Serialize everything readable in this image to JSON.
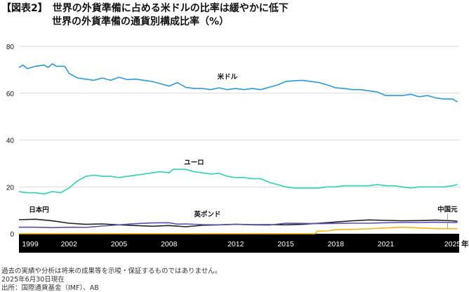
{
  "title": "【図表2】　世界の外貨準備に占める米ドルの比率は緩やかに低下",
  "subtitle": "世界の外貨準備の通貨別構成比率（%）",
  "footnotes": [
    "過去の実績や分析は将来の成果等を示唆・保証するものではありません。",
    "2025年6月30日現在",
    "出所：国際通貨基金（IMF）、AB"
  ],
  "chart_data": {
    "type": "line",
    "title": "世界の外貨準備の通貨別構成比率（%）",
    "xlabel": "年",
    "ylabel": "%",
    "ylim": [
      0,
      80
    ],
    "xlim": [
      1999,
      2025.4
    ],
    "yticks": [
      0,
      20,
      40,
      60,
      80
    ],
    "xticks": [
      {
        "label": "1999",
        "x": 1999
      },
      {
        "label": "2002",
        "x": 2002
      },
      {
        "label": "2005",
        "x": 2005
      },
      {
        "label": "2008",
        "x": 2008
      },
      {
        "label": "2012",
        "x": 2012
      },
      {
        "label": "2015",
        "x": 2015
      },
      {
        "label": "2018",
        "x": 2018
      },
      {
        "label": "2021",
        "x": 2021
      },
      {
        "label": "2025",
        "x": 2025
      }
    ],
    "grid": true,
    "series": [
      {
        "name": "米ドル",
        "color": "#2b9ad6",
        "label_at": [
          2011.5,
          66
        ],
        "x": [
          1999,
          1999.25,
          1999.5,
          2000,
          2000.5,
          2000.75,
          2001,
          2001.25,
          2001.75,
          2002,
          2002.5,
          2003,
          2003.5,
          2004,
          2004.5,
          2005,
          2005.5,
          2006,
          2006.5,
          2007,
          2007.5,
          2008,
          2008.5,
          2009,
          2009.5,
          2010,
          2010.5,
          2011,
          2011.5,
          2012,
          2012.5,
          2013,
          2013.5,
          2014,
          2014.5,
          2015,
          2015.5,
          2016,
          2016.5,
          2017,
          2017.5,
          2018,
          2018.5,
          2019,
          2019.5,
          2020,
          2020.5,
          2021,
          2021.5,
          2022,
          2022.5,
          2023,
          2023.5,
          2024,
          2024.5,
          2025,
          2025.3
        ],
        "values": [
          71,
          72,
          70.5,
          71.5,
          72,
          71,
          72.5,
          71.5,
          71.5,
          68.5,
          66.5,
          66,
          65.5,
          66.5,
          65.5,
          66.8,
          65.8,
          66,
          65.5,
          65,
          64,
          63,
          64.5,
          62.5,
          62,
          62,
          61.5,
          62.3,
          61.5,
          62,
          61.5,
          62,
          61.5,
          62.5,
          63.5,
          65,
          65.3,
          65.5,
          65,
          64.5,
          63.5,
          62.3,
          62,
          61.5,
          61.5,
          61,
          60.5,
          59,
          59,
          59,
          59.5,
          58.5,
          59,
          58,
          57.5,
          57.5,
          56.3
        ]
      },
      {
        "name": "ユーロ",
        "color": "#2fd3b4",
        "label_at": [
          2009.5,
          29.5
        ],
        "x": [
          1999,
          1999.5,
          2000,
          2000.5,
          2001,
          2001.5,
          2002,
          2002.5,
          2003,
          2003.5,
          2004,
          2004.5,
          2005,
          2005.5,
          2006,
          2006.5,
          2007,
          2007.5,
          2008,
          2008.25,
          2008.75,
          2009,
          2009.5,
          2010,
          2010.5,
          2011,
          2011.5,
          2012,
          2012.5,
          2013,
          2013.5,
          2014,
          2014.5,
          2015,
          2015.5,
          2016,
          2016.5,
          2017,
          2017.5,
          2018,
          2018.5,
          2019,
          2019.5,
          2020,
          2020.5,
          2021,
          2021.5,
          2022,
          2022.5,
          2023,
          2023.5,
          2024,
          2024.5,
          2025,
          2025.3
        ],
        "values": [
          18,
          17.5,
          17.5,
          17,
          18,
          17.5,
          19.5,
          22.5,
          24.5,
          25,
          24.5,
          24.5,
          24,
          24.5,
          25,
          25.5,
          26,
          26.5,
          26,
          27.5,
          27.5,
          27.5,
          26.5,
          26,
          25.5,
          25.8,
          24.5,
          24,
          24,
          23.5,
          23.5,
          22,
          21,
          20,
          19.5,
          19.5,
          19.5,
          19.5,
          20,
          20,
          20.5,
          20.5,
          20.5,
          20.5,
          21,
          20.5,
          20.5,
          20,
          19.5,
          20,
          20,
          20,
          20,
          20.5,
          21
        ]
      },
      {
        "name": "日本円",
        "color": "#222222",
        "label_at": [
          2000.2,
          9.3
        ],
        "x": [
          1999,
          2000,
          2001,
          2002,
          2003,
          2004,
          2005,
          2006,
          2007,
          2008,
          2009,
          2010,
          2011,
          2012,
          2013,
          2014,
          2015,
          2016,
          2017,
          2018,
          2019,
          2020,
          2021,
          2022,
          2023,
          2024,
          2025,
          2025.3
        ],
        "values": [
          6,
          6.2,
          5.5,
          4.5,
          4,
          4.2,
          3.8,
          3.5,
          3.2,
          3.5,
          3,
          3.6,
          3.8,
          4,
          3.9,
          3.9,
          3.8,
          4,
          4.5,
          5,
          5.5,
          5.9,
          5.7,
          5.5,
          5.6,
          5.8,
          5.5,
          5.3
        ]
      },
      {
        "name": "英ポンド",
        "color": "#5a4db3",
        "label_at": [
          2010.3,
          7.3
        ],
        "x": [
          1999,
          2000,
          2001,
          2002,
          2003,
          2004,
          2005,
          2006,
          2007,
          2008,
          2008.5,
          2009,
          2010,
          2011,
          2012,
          2013,
          2014,
          2015,
          2016,
          2017,
          2018,
          2019,
          2020,
          2021,
          2022,
          2023,
          2024,
          2025,
          2025.3
        ],
        "values": [
          2.8,
          2.8,
          2.6,
          2.8,
          2.7,
          3.3,
          3.8,
          4.3,
          4.6,
          4.7,
          4.1,
          4.2,
          3.9,
          3.8,
          4,
          3.8,
          3.7,
          4.5,
          4.4,
          4.3,
          4.4,
          4.5,
          4.5,
          4.7,
          4.8,
          4.8,
          4.9,
          4.8,
          4.8
        ]
      },
      {
        "name": "中国元",
        "color": "#f5b50a",
        "label_at": [
          2024.7,
          9.5
        ],
        "x": [
          1999,
          2016.75,
          2016.9,
          2017.5,
          2018,
          2019,
          2020,
          2021,
          2022,
          2023,
          2024,
          2025,
          2025.3
        ],
        "values": [
          0,
          0,
          1.1,
          1.2,
          1.7,
          1.9,
          2.1,
          2.5,
          2.8,
          2.5,
          2.2,
          2.2,
          2.1
        ]
      }
    ]
  }
}
